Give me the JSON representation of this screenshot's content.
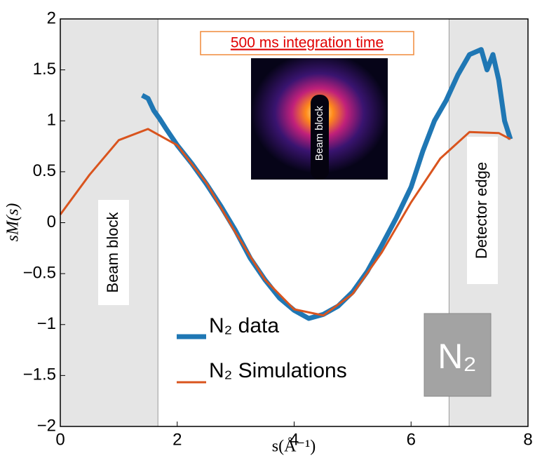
{
  "chart_data": {
    "type": "line",
    "x_label": "s(Å⁻¹)",
    "y_label": "sM(s)",
    "xlim": [
      0,
      8
    ],
    "ylim": [
      -2,
      2
    ],
    "xticks": [
      0,
      2,
      4,
      6,
      8
    ],
    "yticks": [
      {
        "value": -2,
        "label": "−2"
      },
      {
        "value": -1.5,
        "label": "−1.5"
      },
      {
        "value": -1,
        "label": "−1"
      },
      {
        "value": -0.5,
        "label": "−0.5"
      },
      0,
      0.5,
      1,
      1.5,
      2
    ],
    "shaded_regions": [
      [
        0,
        1.67
      ],
      [
        6.65,
        8
      ]
    ],
    "shaded_labels": [
      "Beam block",
      "Detector edge"
    ],
    "inset_title": "500 ms integration time",
    "inset_label": "Beam block",
    "box_label": "N₂",
    "series": [
      {
        "name": "N₂ data",
        "color": "#1f77b4",
        "x": [
          1.4,
          1.5,
          1.6,
          1.7,
          1.8,
          2.0,
          2.25,
          2.5,
          2.75,
          3.0,
          3.25,
          3.5,
          3.75,
          4.0,
          4.25,
          4.5,
          4.75,
          5.0,
          5.25,
          5.5,
          5.75,
          6.0,
          6.2,
          6.4,
          6.6,
          6.8,
          7.0,
          7.2,
          7.3,
          7.4,
          7.5,
          7.6,
          7.7
        ],
        "values": [
          1.25,
          1.22,
          1.1,
          1.02,
          0.93,
          0.76,
          0.58,
          0.38,
          0.16,
          -0.08,
          -0.35,
          -0.56,
          -0.74,
          -0.86,
          -0.94,
          -0.9,
          -0.82,
          -0.68,
          -0.48,
          -0.22,
          0.05,
          0.35,
          0.7,
          1.0,
          1.2,
          1.45,
          1.65,
          1.7,
          1.5,
          1.65,
          1.4,
          1.0,
          0.82
        ]
      },
      {
        "name": "N₂ Simulations",
        "color": "#d9541e",
        "x": [
          0,
          0.5,
          1.0,
          1.5,
          2.0,
          2.5,
          3.0,
          3.5,
          4.0,
          4.5,
          5.0,
          5.5,
          6.0,
          6.5,
          7.0,
          7.5,
          7.7
        ],
        "values": [
          0.08,
          0.47,
          0.81,
          0.92,
          0.76,
          0.39,
          -0.1,
          -0.56,
          -0.85,
          -0.91,
          -0.7,
          -0.29,
          0.2,
          0.63,
          0.89,
          0.88,
          0.82
        ]
      }
    ]
  }
}
